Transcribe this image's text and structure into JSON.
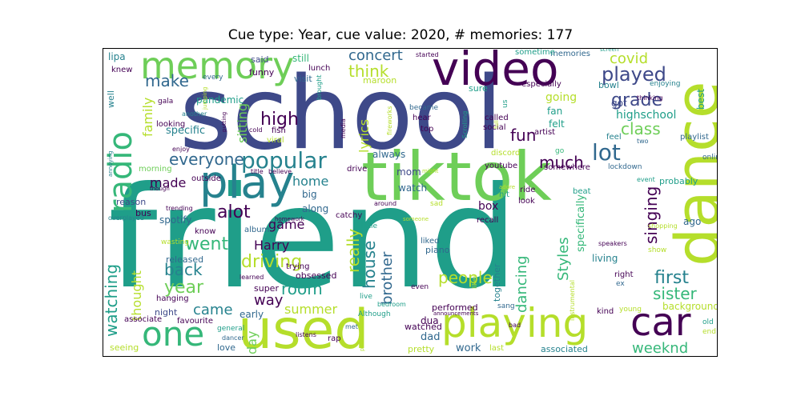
{
  "title": "Cue type: Year, cue value: 2020, # memories: 177",
  "palette": {
    "purple": "#440154",
    "indigo": "#3e4989",
    "blue": "#31688e",
    "teal": "#26828e",
    "green": "#1f9e89",
    "mint": "#35b779",
    "lime": "#6ece58",
    "yellow": "#b5de2b"
  },
  "words": {
    "friend": "friend",
    "school": "school",
    "tiktok": "tiktok",
    "dance": "dance",
    "used": "used",
    "video": "video",
    "play": "play",
    "playing": "playing",
    "memory": "memory",
    "car": "car",
    "one": "one",
    "radio": "radio",
    "popular": "popular",
    "played": "played",
    "lot": "lot",
    "grade": "grade",
    "everyone": "everyone",
    "high": "high",
    "think": "think",
    "make": "make",
    "concert": "concert",
    "covid": "covid",
    "class": "class",
    "first": "first",
    "back": "back",
    "year": "year",
    "driving": "driving",
    "went": "went",
    "alot": "alot",
    "made": "made",
    "came": "came",
    "watching": "watching",
    "sitting": "sitting",
    "family": "family",
    "home": "home",
    "game": "game",
    "room": "room",
    "way": "way",
    "summer": "summer",
    "Harry": "Harry",
    "Styles": "Styles",
    "house": "house",
    "really": "really",
    "brother": "brother",
    "people": "people",
    "dancing": "dancing",
    "sister": "sister",
    "singing": "singing",
    "much": "much",
    "fun": "fun",
    "lyrics": "lyrics",
    "weeknd": "weeknd",
    "thought": "thought",
    "day": "day",
    "box": "box",
    "highschool": "highschool",
    "going": "going",
    "pandemic": "pandemic",
    "specific": "specific",
    "specifically": "specifically",
    "background": "background",
    "work": "work",
    "dad": "dad",
    "dua": "dua",
    "lipa": "lipa",
    "spotify": "spotify",
    "mom": "mom",
    "watch": "watch",
    "big": "big",
    "along": "along",
    "still": "still",
    "maroon": "maroon",
    "fan": "fan",
    "got": "got",
    "felt": "felt",
    "bowl": "bowl",
    "best": "best",
    "associated": "associated",
    "associate": "associate",
    "early": "early",
    "night": "night",
    "seeing": "seeing",
    "love": "love",
    "watched": "watched",
    "performed": "performed",
    "together": "together",
    "living": "living",
    "ago": "ago",
    "probably": "probably",
    "album": "album",
    "piano": "piano",
    "liked": "liked",
    "released": "released",
    "obsessed": "obsessed",
    "super": "super",
    "always": "always",
    "memories": "memories",
    "sometime": "sometime",
    "lunch": "lunch",
    "funny": "funny",
    "visit": "visit",
    "sure": "sure",
    "said": "said",
    "knew": "knew",
    "every": "every",
    "well": "well",
    "gala": "gala",
    "another": "another",
    "looking": "looking",
    "enjoy": "enjoy",
    "morning": "morning",
    "outside": "outside",
    "reason": "reason",
    "bus": "bus",
    "overplayed": "overplayed",
    "trending": "trending",
    "know": "know",
    "wasting": "wasting",
    "hanging": "hanging",
    "favourite": "favourite",
    "general": "general",
    "dancer": "dancer",
    "listens": "listens",
    "rap": "rap",
    "met": "met",
    "pretty": "pretty",
    "last": "last",
    "sang": "sang",
    "bad": "bad",
    "kind": "kind",
    "young": "young",
    "ex": "ex",
    "right": "right",
    "show": "show",
    "old": "old",
    "end": "end",
    "online": "online",
    "playlist": "playlist",
    "feel": "feel",
    "two": "two",
    "screen": "screen",
    "thinking": "thinking",
    "enjoying": "enjoying",
    "especially": "especially",
    "artist": "artist",
    "called": "called",
    "social": "social",
    "top": "top",
    "hear": "hear",
    "became": "became",
    "Scrolling": "Scrolling",
    "fireworks": "fireworks",
    "us": "us",
    "discord": "discord",
    "go": "go",
    "lockdown": "lockdown",
    "event": "event",
    "somewhere": "somewhere",
    "youtube": "youtube",
    "hit": "hit",
    "ride": "ride",
    "beat": "beat",
    "look": "look",
    "recall": "recall",
    "shopping": "shopping",
    "speakers": "speakers",
    "instrumental": "instrumental",
    "likes": "likes",
    "live": "live",
    "bedroom": "bedroom",
    "Although": "Although",
    "announcements": "announcements",
    "even": "even",
    "person": "person",
    "sad": "sad",
    "someone": "someone",
    "around": "around",
    "little": "little",
    "drive": "drive",
    "catchy": "catchy",
    "homework": "homework",
    "trying": "trying",
    "learned": "learned",
    "title": "title",
    "believe": "believe",
    "cold": "cold",
    "fish": "fish",
    "viral": "viral",
    "putting": "putting",
    "jumping": "jumping",
    "brought": "brought",
    "started": "started",
    "media": "media",
    "might": "might",
    "annoying": "annoying",
    "though": "though",
    "full": "full",
    "adore": "adore"
  }
}
